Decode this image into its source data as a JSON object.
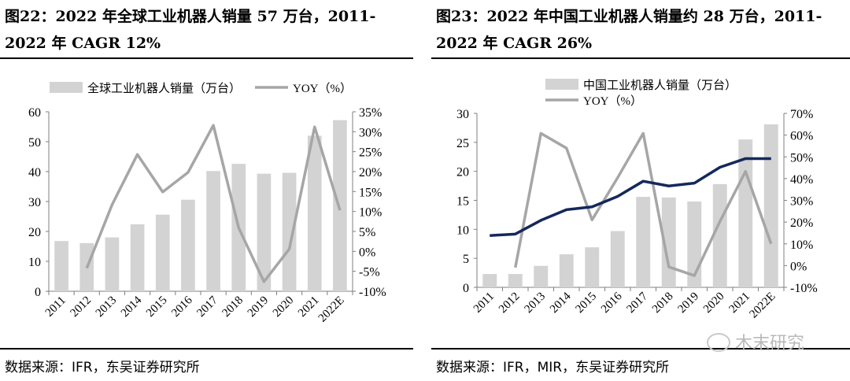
{
  "left_panel": {
    "title": "图22：2022 年全球工业机器人销量 57 万台，2011-2022 年 CAGR 12%",
    "source": "数据来源：IFR，东吴证券研究所"
  },
  "right_panel": {
    "title": "图23：2022 年中国工业机器人销量约 28 万台，2011-2022 年 CAGR 26%",
    "source": "数据来源：IFR，MIR，东吴证券研究所"
  },
  "watermark": "木末研究",
  "colors": {
    "bar": "#d3d3d3",
    "yoy_line": "#a6a6a6",
    "share_line": "#14285a",
    "axis": "#7f7f7f"
  },
  "chart_data": [
    {
      "type": "bar",
      "categories": [
        "2011",
        "2012",
        "2013",
        "2014",
        "2015",
        "2016",
        "2017",
        "2018",
        "2019",
        "2020",
        "2021",
        "2022E"
      ],
      "series": [
        {
          "name": "全球工业机器人销量（万台）",
          "type": "bar",
          "axis": "left",
          "values": [
            16.8,
            16.1,
            18.0,
            22.4,
            25.6,
            30.6,
            40.2,
            42.6,
            39.3,
            39.6,
            52.0,
            57.2
          ]
        },
        {
          "name": "YOY（%）",
          "type": "line",
          "axis": "right",
          "values": [
            null,
            -4.2,
            11.7,
            24.3,
            14.9,
            19.8,
            31.6,
            5.9,
            -7.6,
            0.6,
            31.2,
            10.3
          ]
        }
      ],
      "yleft_ticks": [
        0,
        10,
        20,
        30,
        40,
        50,
        60
      ],
      "yleft_lim": [
        0,
        60
      ],
      "yright_ticks": [
        "-10%",
        "-5%",
        "0%",
        "5%",
        "10%",
        "15%",
        "20%",
        "25%",
        "30%",
        "35%"
      ],
      "yright_lim": [
        -10,
        35
      ],
      "legend_position": "top"
    },
    {
      "type": "bar",
      "categories": [
        "2011",
        "2012",
        "2013",
        "2014",
        "2015",
        "2016",
        "2017",
        "2018",
        "2019",
        "2020",
        "2021",
        "2022E"
      ],
      "series": [
        {
          "name": "中国工业机器人销量（万台）",
          "type": "bar",
          "axis": "left",
          "values": [
            2.3,
            2.3,
            3.7,
            5.7,
            6.9,
            9.7,
            15.6,
            15.5,
            14.8,
            17.8,
            25.5,
            28.1
          ]
        },
        {
          "name": "YOY（%）",
          "type": "line",
          "axis": "right",
          "values": [
            null,
            -0.9,
            60.8,
            54.0,
            21.0,
            40.4,
            60.8,
            -0.6,
            -4.6,
            20.3,
            43.3,
            10.0
          ]
        },
        {
          "name": "",
          "type": "line",
          "axis": "right",
          "values": [
            13.8,
            14.5,
            20.8,
            25.7,
            27.0,
            31.8,
            38.8,
            36.6,
            37.9,
            45.2,
            49.2,
            49.2
          ]
        }
      ],
      "yleft_ticks": [
        0,
        5,
        10,
        15,
        20,
        25,
        30
      ],
      "yleft_lim": [
        0,
        30
      ],
      "yright_ticks": [
        "-10%",
        "0%",
        "10%",
        "20%",
        "30%",
        "40%",
        "50%",
        "60%",
        "70%"
      ],
      "yright_lim": [
        -10,
        70
      ],
      "legend_position": "top"
    }
  ]
}
